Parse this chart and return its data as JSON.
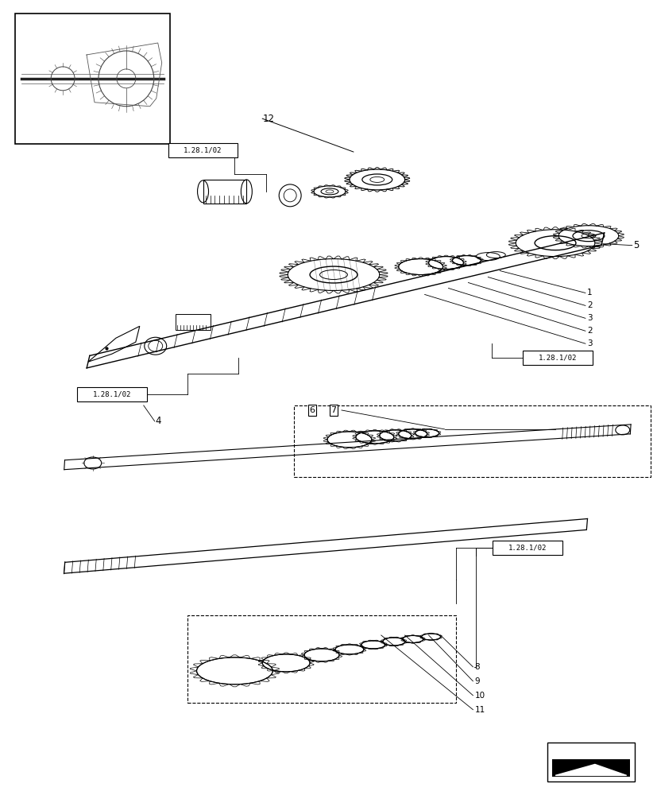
{
  "bg_color": "#ffffff",
  "lc": "#000000",
  "fig_w": 8.28,
  "fig_h": 10.0,
  "dpi": 100,
  "pw": 828,
  "ph": 1000
}
